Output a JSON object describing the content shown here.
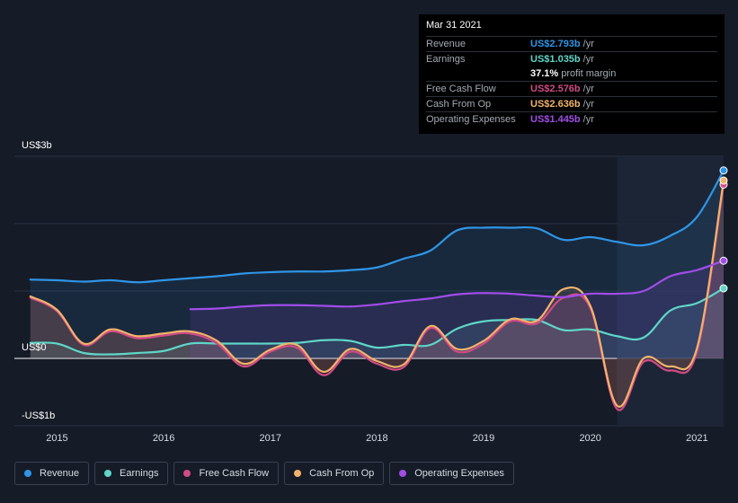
{
  "tooltip": {
    "date": "Mar 31 2021",
    "rows": [
      {
        "label": "Revenue",
        "value": "US$2.793b",
        "unit": "/yr",
        "color": "#2f95e6"
      },
      {
        "label": "Earnings",
        "value": "US$1.035b",
        "unit": "/yr",
        "color": "#5fd6c8"
      },
      {
        "label": "",
        "value": "37.1%",
        "unit": "profit margin",
        "color": "#ffffff"
      },
      {
        "label": "Free Cash Flow",
        "value": "US$2.576b",
        "unit": "/yr",
        "color": "#d14b86"
      },
      {
        "label": "Cash From Op",
        "value": "US$2.636b",
        "unit": "/yr",
        "color": "#f2b36b"
      },
      {
        "label": "Operating Expenses",
        "value": "US$1.445b",
        "unit": "/yr",
        "color": "#a14de8"
      }
    ]
  },
  "legend": [
    {
      "label": "Revenue",
      "color": "#2f95e6"
    },
    {
      "label": "Earnings",
      "color": "#5fd6c8"
    },
    {
      "label": "Free Cash Flow",
      "color": "#d14b86"
    },
    {
      "label": "Cash From Op",
      "color": "#f2b36b"
    },
    {
      "label": "Operating Expenses",
      "color": "#a14de8"
    }
  ],
  "chart_data": {
    "type": "line",
    "y_axis_labels": [
      "US$3b",
      "US$0",
      "-US$1b"
    ],
    "x_tick_labels": [
      "2015",
      "2016",
      "2017",
      "2018",
      "2019",
      "2020",
      "2021"
    ],
    "ylim": [
      -1,
      3
    ],
    "xlim": [
      2014.6,
      2021.25
    ],
    "grid": true,
    "legend_position": "bottom-left",
    "series": [
      {
        "name": "Revenue",
        "color": "#2f95e6",
        "x": [
          2014.75,
          2015.0,
          2015.25,
          2015.5,
          2015.75,
          2016.0,
          2016.25,
          2016.5,
          2016.75,
          2017.0,
          2017.25,
          2017.5,
          2017.75,
          2018.0,
          2018.25,
          2018.5,
          2018.75,
          2019.0,
          2019.25,
          2019.5,
          2019.75,
          2020.0,
          2020.25,
          2020.5,
          2020.75,
          2021.0,
          2021.25
        ],
        "y": [
          1.17,
          1.16,
          1.14,
          1.16,
          1.13,
          1.16,
          1.19,
          1.22,
          1.26,
          1.28,
          1.29,
          1.29,
          1.31,
          1.35,
          1.48,
          1.6,
          1.9,
          1.94,
          1.94,
          1.93,
          1.76,
          1.8,
          1.73,
          1.68,
          1.82,
          2.1,
          2.79
        ]
      },
      {
        "name": "Earnings",
        "color": "#5fd6c8",
        "x": [
          2014.75,
          2015.0,
          2015.25,
          2015.5,
          2015.75,
          2016.0,
          2016.25,
          2016.5,
          2016.75,
          2017.0,
          2017.25,
          2017.5,
          2017.75,
          2018.0,
          2018.25,
          2018.5,
          2018.75,
          2019.0,
          2019.25,
          2019.5,
          2019.75,
          2020.0,
          2020.25,
          2020.5,
          2020.75,
          2021.0,
          2021.25
        ],
        "y": [
          0.23,
          0.22,
          0.08,
          0.06,
          0.08,
          0.11,
          0.22,
          0.22,
          0.22,
          0.22,
          0.23,
          0.27,
          0.26,
          0.16,
          0.2,
          0.2,
          0.44,
          0.55,
          0.57,
          0.57,
          0.42,
          0.43,
          0.33,
          0.31,
          0.71,
          0.82,
          1.04
        ]
      },
      {
        "name": "Free Cash Flow",
        "color": "#d14b86",
        "x": [
          2014.75,
          2015.0,
          2015.25,
          2015.5,
          2015.75,
          2016.0,
          2016.25,
          2016.5,
          2016.75,
          2017.0,
          2017.25,
          2017.5,
          2017.75,
          2018.0,
          2018.25,
          2018.5,
          2018.75,
          2019.0,
          2019.25,
          2019.5,
          2019.75,
          2020.0,
          2020.25,
          2020.5,
          2020.75,
          2021.0,
          2021.25
        ],
        "y": [
          0.9,
          0.7,
          0.2,
          0.4,
          0.3,
          0.34,
          0.37,
          0.22,
          -0.12,
          0.1,
          0.16,
          -0.25,
          0.1,
          -0.08,
          -0.13,
          0.45,
          0.1,
          0.22,
          0.55,
          0.52,
          0.9,
          0.75,
          -0.75,
          -0.05,
          -0.18,
          0.1,
          2.58
        ]
      },
      {
        "name": "Cash From Op",
        "color": "#f2b36b",
        "x": [
          2014.75,
          2015.0,
          2015.25,
          2015.5,
          2015.75,
          2016.0,
          2016.25,
          2016.5,
          2016.75,
          2017.0,
          2017.25,
          2017.5,
          2017.75,
          2018.0,
          2018.25,
          2018.5,
          2018.75,
          2019.0,
          2019.25,
          2019.5,
          2019.75,
          2020.0,
          2020.25,
          2020.5,
          2020.75,
          2021.0,
          2021.25
        ],
        "y": [
          0.92,
          0.72,
          0.22,
          0.43,
          0.33,
          0.37,
          0.4,
          0.26,
          -0.08,
          0.13,
          0.2,
          -0.2,
          0.14,
          -0.04,
          -0.09,
          0.48,
          0.14,
          0.26,
          0.58,
          0.56,
          1.03,
          0.78,
          -0.7,
          0.0,
          -0.12,
          0.15,
          2.64
        ]
      },
      {
        "name": "Operating Expenses",
        "color": "#a14de8",
        "x": [
          2016.25,
          2016.5,
          2016.75,
          2017.0,
          2017.25,
          2017.5,
          2017.75,
          2018.0,
          2018.25,
          2018.5,
          2018.75,
          2019.0,
          2019.25,
          2019.5,
          2019.75,
          2020.0,
          2020.25,
          2020.5,
          2020.75,
          2021.0,
          2021.25
        ],
        "y": [
          0.73,
          0.74,
          0.77,
          0.79,
          0.79,
          0.78,
          0.77,
          0.8,
          0.85,
          0.89,
          0.95,
          0.97,
          0.96,
          0.93,
          0.91,
          0.96,
          0.96,
          1.0,
          1.22,
          1.31,
          1.45
        ]
      }
    ]
  }
}
